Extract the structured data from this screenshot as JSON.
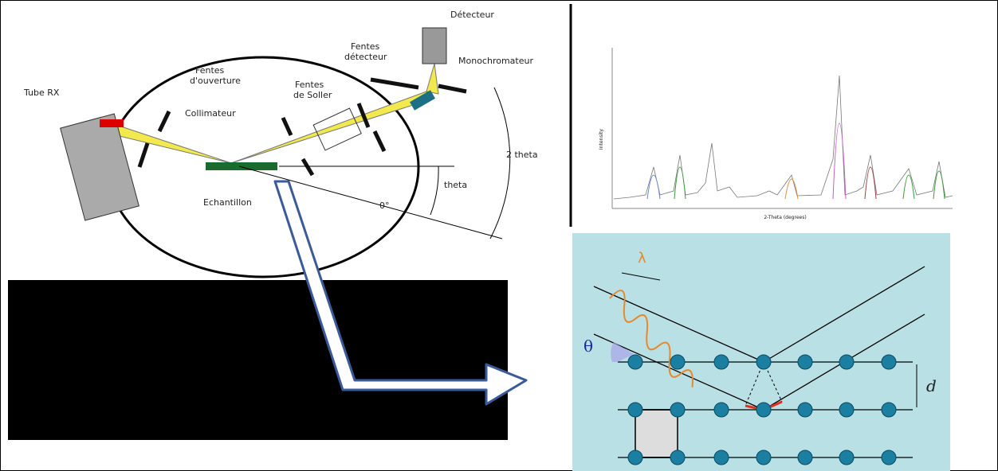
{
  "diagram": {
    "labels": {
      "detector": "Détecteur",
      "detector_slits": [
        "Fentes",
        "détecteur"
      ],
      "monochromator": "Monochromateur",
      "aperture_slits": [
        "Fentes",
        "d'ouverture"
      ],
      "soller_slits": [
        "Fentes",
        "de Soller"
      ],
      "tube": "Tube RX",
      "collimator": "Collimateur",
      "two_theta": "2 theta",
      "theta": "theta",
      "sample": "Echantillon",
      "zero": "0°"
    },
    "pattern": {
      "x_label": "2-Theta (degrees)",
      "y_label": "Intensity"
    },
    "bragg": {
      "wavelength": "λ",
      "angle": "θ",
      "spacing": "d"
    }
  }
}
